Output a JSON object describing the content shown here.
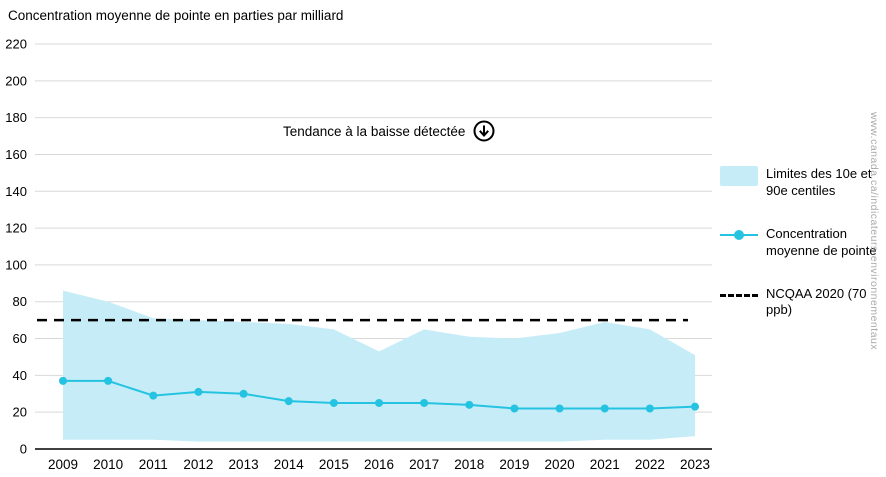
{
  "title": "Concentration moyenne de pointe en parties par milliard",
  "annotation": {
    "text": "Tendance à la baisse détectée",
    "icon": "circled-down-arrow"
  },
  "watermark": "www.canada.ca/indicateurs-environnementaux",
  "legend": [
    {
      "type": "band",
      "label": "Limites des 10e et 90e centiles"
    },
    {
      "type": "line-marker",
      "label": "Concentration moyenne de pointe"
    },
    {
      "type": "dashed",
      "label": "NCQAA 2020 (70 ppb)"
    }
  ],
  "colors": {
    "band": "#c6edf7",
    "line": "#25c3e2",
    "dashed": "#000000",
    "grid": "#d9d9d9",
    "axis": "#000000",
    "text": "#000000",
    "watermark": "#a9a9a9"
  },
  "chart_data": {
    "type": "line",
    "title": "Concentration moyenne de pointe en parties par milliard",
    "x": [
      2009,
      2010,
      2011,
      2012,
      2013,
      2014,
      2015,
      2016,
      2017,
      2018,
      2019,
      2020,
      2021,
      2022,
      2023
    ],
    "series": [
      {
        "name": "Concentration moyenne de pointe",
        "values": [
          37,
          37,
          29,
          31,
          30,
          26,
          25,
          25,
          25,
          24,
          22,
          22,
          22,
          22,
          23
        ]
      },
      {
        "name": "90e centile",
        "values": [
          86,
          80,
          71,
          70,
          69,
          68,
          65,
          53,
          65,
          61,
          60,
          63,
          69,
          65,
          51
        ]
      },
      {
        "name": "10e centile",
        "values": [
          5,
          5,
          5,
          4,
          4,
          4,
          4,
          4,
          4,
          4,
          4,
          4,
          5,
          5,
          7
        ]
      }
    ],
    "reference_line": {
      "label": "NCQAA 2020 (70 ppb)",
      "value": 70
    },
    "ylim": [
      0,
      220
    ],
    "ytick_step": 20,
    "xlabel": "",
    "ylabel": "",
    "grid": true,
    "legend_position": "right"
  }
}
